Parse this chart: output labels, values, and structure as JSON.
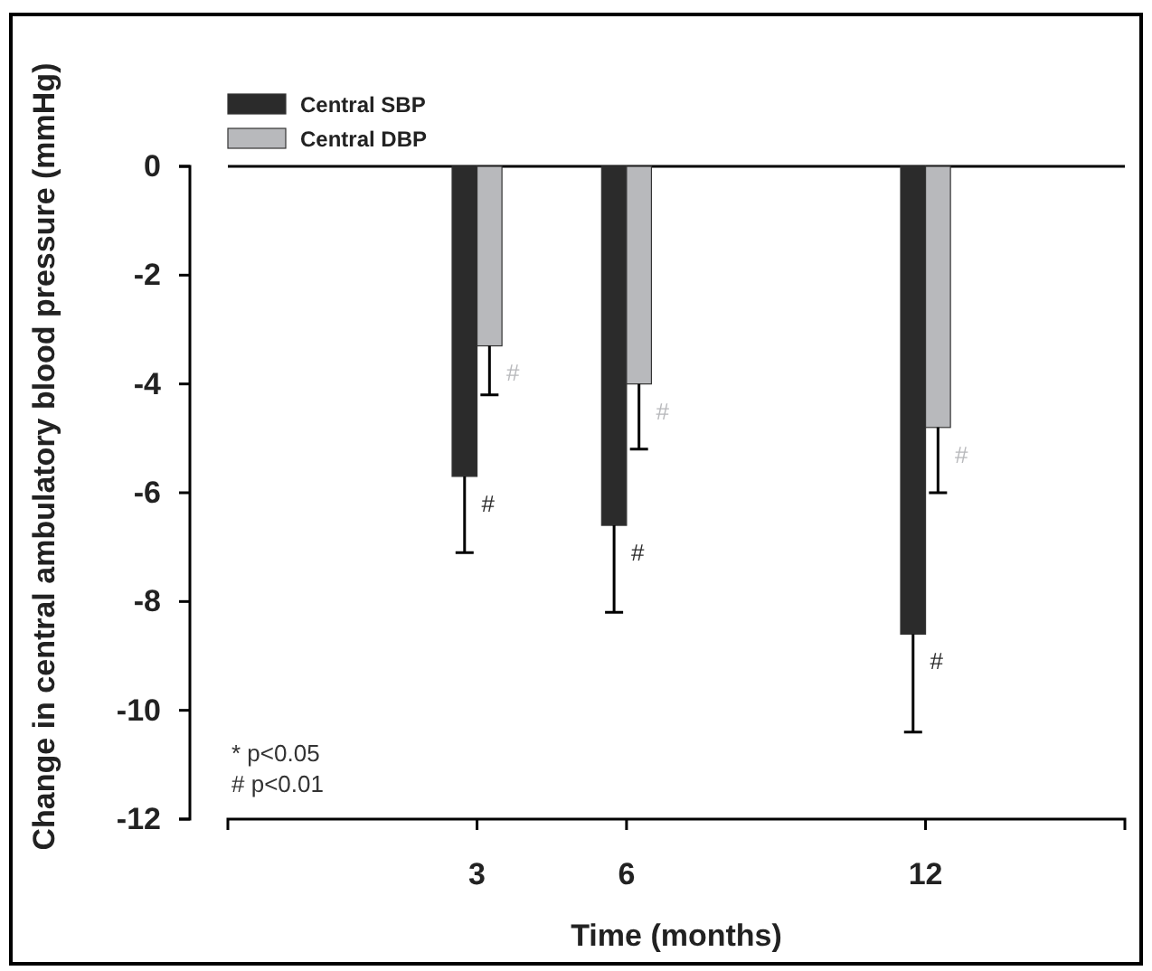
{
  "chart_data": {
    "type": "bar",
    "xlabel": "Time (months)",
    "ylabel": "Change in central ambulatory blood pressure (mmHg)",
    "x": [
      3,
      6,
      12
    ],
    "series": [
      {
        "name": "Central SBP",
        "color": "#2b2b2b",
        "values": [
          -5.7,
          -6.6,
          -8.6
        ],
        "errors": [
          [
            -7.1,
            -5.7
          ],
          [
            -8.2,
            -6.6
          ],
          [
            -10.4,
            -8.6
          ]
        ]
      },
      {
        "name": "Central DBP",
        "color": "#b8b9bc",
        "values": [
          -3.3,
          -4.0,
          -4.8
        ],
        "errors": [
          [
            -4.2,
            -3.3
          ],
          [
            -5.2,
            -4.0
          ],
          [
            -6.0,
            -4.8
          ]
        ]
      }
    ],
    "xlim": [
      -2,
      16
    ],
    "xticks": [
      3,
      6,
      12
    ],
    "ylim": [
      -12,
      0
    ],
    "yticks": [
      0,
      -2,
      -4,
      -6,
      -8,
      -10,
      -12
    ],
    "ref_lines": [
      {
        "axis": "y",
        "value": 0,
        "label": null,
        "color": "#000000"
      }
    ],
    "annotations": [
      {
        "text": "#",
        "x": 3,
        "y": -5.7
      },
      {
        "text": "#",
        "x": 6,
        "y": -6.6
      },
      {
        "text": "#",
        "x": 12,
        "y": -8.6
      },
      {
        "text": "#",
        "x": 3,
        "y": -3.3
      },
      {
        "text": "#",
        "x": 6,
        "y": -4.0
      },
      {
        "text": "#",
        "x": 12,
        "y": -4.8
      },
      "* p<0.05",
      "# p<0.01"
    ],
    "legend": "top left",
    "grid": false
  }
}
